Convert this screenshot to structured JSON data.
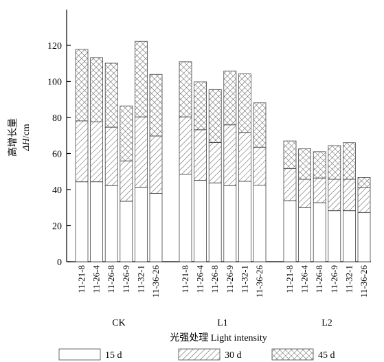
{
  "chart_data": {
    "type": "bar",
    "stacked": true,
    "ylabel_cn": "高增长量",
    "ylabel_sym": "ΔH",
    "ylabel_unit": "/cm",
    "xlabel": "光强处理 Light intensity",
    "ylim": [
      0,
      140
    ],
    "yticks": [
      0,
      20,
      40,
      60,
      80,
      100,
      120
    ],
    "grid": false,
    "legend_position": "bottom",
    "groups": [
      {
        "name": "CK",
        "categories": [
          "11-21-8",
          "11-26-4",
          "11-26-8",
          "11-26-9",
          "11-32-1",
          "11-36-26"
        ],
        "cumulative": {
          "15 d": [
            44.3,
            44.3,
            42.2,
            33.5,
            41.3,
            37.9
          ],
          "30 d": [
            78.1,
            77.5,
            74.6,
            55.9,
            80.3,
            69.7
          ],
          "45 d": [
            117.8,
            113.2,
            110.1,
            86.4,
            122.2,
            103.9
          ]
        }
      },
      {
        "name": "L1",
        "categories": [
          "11-21-8",
          "11-26-4",
          "11-26-8",
          "11-26-9",
          "11-32-1",
          "11-36-26"
        ],
        "cumulative": {
          "15 d": [
            48.6,
            45.1,
            43.7,
            42.2,
            44.6,
            42.5
          ],
          "30 d": [
            80.3,
            73.2,
            66.1,
            75.9,
            71.7,
            63.5
          ],
          "45 d": [
            110.9,
            99.8,
            95.5,
            105.8,
            104.2,
            88.1
          ]
        }
      },
      {
        "name": "L2",
        "categories": [
          "11-21-8",
          "11-26-4",
          "11-26-8",
          "11-26-9",
          "11-32-1",
          "11-36-26"
        ],
        "cumulative": {
          "15 d": [
            33.8,
            29.9,
            32.7,
            28.3,
            28.3,
            27.3
          ],
          "30 d": [
            51.6,
            45.7,
            46.4,
            45.7,
            45.7,
            41.2
          ],
          "45 d": [
            67.0,
            62.6,
            61.0,
            64.4,
            66.0,
            46.7
          ]
        }
      }
    ],
    "series": [
      {
        "name": "15 d",
        "pattern": "blank"
      },
      {
        "name": "30 d",
        "pattern": "diagonal"
      },
      {
        "name": "45 d",
        "pattern": "crosshatch"
      }
    ]
  }
}
